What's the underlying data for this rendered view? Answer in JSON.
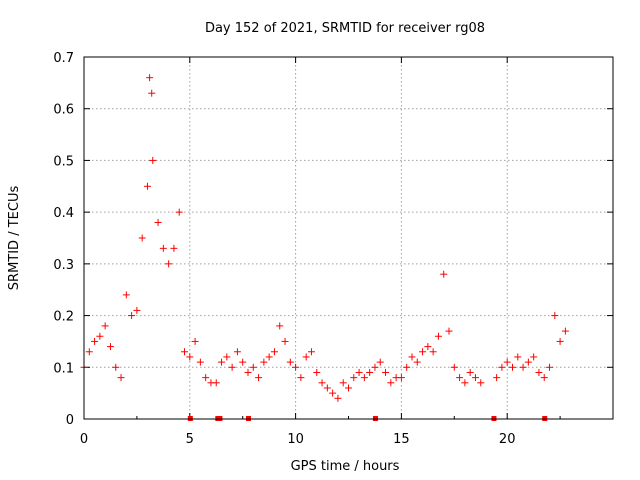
{
  "chart_data": {
    "type": "scatter",
    "title": "Day 152 of 2021, SRMTID for receiver rg08",
    "xlabel": "GPS time / hours",
    "ylabel": "SRMTID / TECUs",
    "xlim": [
      0,
      25
    ],
    "ylim": [
      0,
      0.7
    ],
    "x_ticks": [
      0,
      5,
      10,
      15,
      20
    ],
    "x_tick_labels": [
      "0",
      "5",
      "10",
      "15",
      "20"
    ],
    "y_ticks": [
      0,
      0.1,
      0.2,
      0.3,
      0.4,
      0.5,
      0.6,
      0.7
    ],
    "y_tick_labels": [
      "0",
      "0.1",
      "0.2",
      "0.3",
      "0.4",
      "0.5",
      "0.6",
      "0.7"
    ],
    "grid": true,
    "marker": "+",
    "color": "#ff0000",
    "series": [
      {
        "name": "SRMTID",
        "x": [
          0.0,
          0.25,
          0.5,
          0.75,
          1.0,
          1.25,
          1.5,
          1.75,
          2.0,
          2.25,
          2.5,
          2.75,
          3.0,
          3.1,
          3.2,
          3.25,
          3.5,
          3.75,
          4.0,
          4.25,
          4.5,
          4.75,
          5.0,
          5.25,
          5.5,
          5.75,
          6.0,
          6.25,
          6.5,
          6.75,
          7.0,
          7.25,
          7.5,
          7.75,
          8.0,
          8.25,
          8.5,
          8.75,
          9.0,
          9.25,
          9.5,
          9.75,
          10.0,
          10.25,
          10.5,
          10.75,
          11.0,
          11.25,
          11.5,
          11.75,
          12.0,
          12.25,
          12.5,
          12.75,
          13.0,
          13.25,
          13.5,
          13.75,
          14.0,
          14.25,
          14.5,
          14.75,
          15.0,
          15.25,
          15.5,
          15.75,
          16.0,
          16.25,
          16.5,
          16.75,
          17.0,
          17.25,
          17.5,
          17.75,
          18.0,
          18.25,
          18.5,
          18.75,
          19.5,
          19.75,
          20.0,
          20.25,
          20.5,
          20.75,
          21.0,
          21.25,
          21.5,
          21.75,
          22.0,
          22.25,
          22.5,
          22.75
        ],
        "y": [
          0.1,
          0.13,
          0.15,
          0.16,
          0.18,
          0.14,
          0.1,
          0.08,
          0.24,
          0.2,
          0.21,
          0.35,
          0.45,
          0.66,
          0.63,
          0.5,
          0.38,
          0.33,
          0.3,
          0.33,
          0.4,
          0.13,
          0.12,
          0.15,
          0.11,
          0.08,
          0.07,
          0.07,
          0.11,
          0.12,
          0.1,
          0.13,
          0.11,
          0.09,
          0.1,
          0.08,
          0.11,
          0.12,
          0.13,
          0.18,
          0.15,
          0.11,
          0.1,
          0.08,
          0.12,
          0.13,
          0.09,
          0.07,
          0.06,
          0.05,
          0.04,
          0.07,
          0.06,
          0.08,
          0.09,
          0.08,
          0.09,
          0.1,
          0.11,
          0.09,
          0.07,
          0.08,
          0.08,
          0.1,
          0.12,
          0.11,
          0.13,
          0.14,
          0.13,
          0.16,
          0.28,
          0.17,
          0.1,
          0.08,
          0.07,
          0.09,
          0.08,
          0.07,
          0.08,
          0.1,
          0.11,
          0.1,
          0.12,
          0.1,
          0.11,
          0.12,
          0.09,
          0.08,
          0.1,
          0.2,
          0.15,
          0.17
        ]
      }
    ],
    "data_gaps_hours": [
      5.0,
      6.3,
      6.4,
      7.75,
      13.75,
      19.35,
      21.75
    ]
  }
}
